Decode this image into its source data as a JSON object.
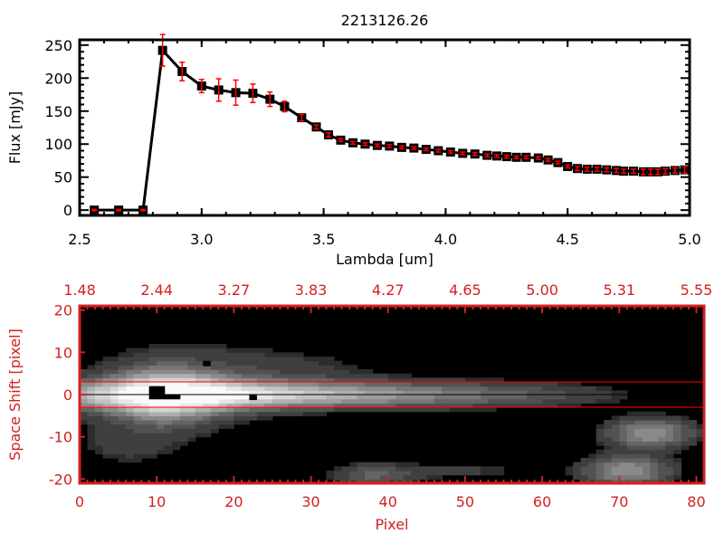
{
  "chart_data": [
    {
      "type": "line",
      "title": "2213126.26",
      "xlabel": "Lambda [um]",
      "ylabel": "Flux [mJy]",
      "xlim": [
        2.5,
        5.0
      ],
      "ylim": [
        -8,
        258
      ],
      "xticks": [
        "2.5",
        "3.0",
        "3.5",
        "4.0",
        "4.5",
        "5.0"
      ],
      "yticks": [
        "0",
        "50",
        "100",
        "150",
        "200",
        "250"
      ],
      "series": [
        {
          "name": "flux",
          "x": [
            2.56,
            2.66,
            2.76,
            2.84,
            2.92,
            3.0,
            3.07,
            3.14,
            3.21,
            3.28,
            3.34,
            3.41,
            3.47,
            3.52,
            3.57,
            3.62,
            3.67,
            3.72,
            3.77,
            3.82,
            3.87,
            3.92,
            3.97,
            4.02,
            4.07,
            4.12,
            4.17,
            4.21,
            4.25,
            4.29,
            4.33,
            4.38,
            4.42,
            4.46,
            4.5,
            4.54,
            4.58,
            4.62,
            4.66,
            4.7,
            4.73,
            4.77,
            4.81,
            4.84,
            4.87,
            4.9,
            4.94,
            4.98
          ],
          "y": [
            0,
            0,
            0,
            242,
            210,
            188,
            182,
            178,
            177,
            168,
            157,
            140,
            126,
            114,
            106,
            102,
            100,
            98,
            97,
            95,
            94,
            92,
            90,
            88,
            86,
            85,
            83,
            82,
            81,
            80,
            80,
            79,
            76,
            72,
            66,
            63,
            62,
            62,
            61,
            60,
            59,
            59,
            58,
            58,
            58,
            59,
            60,
            61
          ],
          "yerr": [
            1,
            1,
            1,
            24,
            14,
            10,
            17,
            19,
            14,
            11,
            8,
            5,
            3,
            3,
            2,
            2,
            2,
            2,
            2,
            2,
            2,
            2,
            2,
            2,
            2,
            2,
            2,
            2,
            2,
            2,
            2,
            2,
            2,
            2,
            2,
            3,
            3,
            3,
            3,
            3,
            3,
            3,
            4,
            4,
            4,
            4,
            4,
            5
          ],
          "marker": "square",
          "color": "#000000",
          "errcolor": "#ff0000"
        }
      ]
    },
    {
      "type": "heatmap",
      "xlabel": "Pixel",
      "ylabel": "Space Shift [pixel]",
      "xlim": [
        0,
        81
      ],
      "ylim": [
        -21,
        21
      ],
      "xticks": [
        "0",
        "10",
        "20",
        "30",
        "40",
        "50",
        "60",
        "70",
        "80"
      ],
      "yticks": [
        "-20",
        "-10",
        "0",
        "10",
        "20"
      ],
      "top_xticks": [
        "1.48",
        "2.44",
        "3.27",
        "3.83",
        "4.27",
        "4.65",
        "5.00",
        "5.31",
        "5.55"
      ],
      "extraction_lines": [
        3,
        -3
      ],
      "center_line": 0,
      "axis_color": "#d42020"
    }
  ]
}
